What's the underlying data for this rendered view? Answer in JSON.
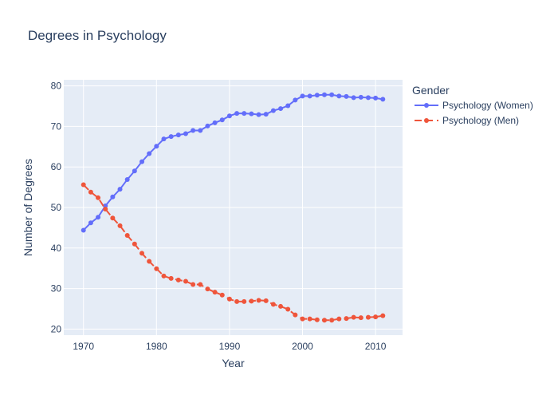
{
  "chart_data": {
    "type": "line",
    "title": "Degrees in Psychology",
    "xlabel": "Year",
    "ylabel": "Number of Degrees",
    "xlim": [
      1967.3,
      2013.7
    ],
    "ylim": [
      18.5,
      81.5
    ],
    "x_ticks": [
      1970,
      1980,
      1990,
      2000,
      2010
    ],
    "y_ticks": [
      20,
      30,
      40,
      50,
      60,
      70,
      80
    ],
    "grid": true,
    "legend": {
      "title": "Gender",
      "position": "right"
    },
    "x": [
      1970,
      1971,
      1972,
      1973,
      1974,
      1975,
      1976,
      1977,
      1978,
      1979,
      1980,
      1981,
      1982,
      1983,
      1984,
      1985,
      1986,
      1987,
      1988,
      1989,
      1990,
      1991,
      1992,
      1993,
      1994,
      1995,
      1996,
      1997,
      1998,
      1999,
      2000,
      2001,
      2002,
      2003,
      2004,
      2005,
      2006,
      2007,
      2008,
      2009,
      2010,
      2011
    ],
    "series": [
      {
        "name": "Psychology (Women)",
        "color": "#636efa",
        "dash": "solid",
        "values": [
          44.4,
          46.2,
          47.6,
          50.4,
          52.6,
          54.5,
          56.9,
          59.0,
          61.3,
          63.3,
          65.1,
          66.9,
          67.5,
          67.9,
          68.2,
          69.0,
          69.0,
          70.1,
          70.9,
          71.6,
          72.6,
          73.2,
          73.2,
          73.1,
          72.9,
          73.0,
          73.9,
          74.4,
          75.1,
          76.5,
          77.5,
          77.5,
          77.7,
          77.8,
          77.8,
          77.5,
          77.4,
          77.1,
          77.2,
          77.1,
          77.0,
          76.7
        ]
      },
      {
        "name": "Psychology (Men)",
        "color": "#ef553b",
        "dash": "dash",
        "values": [
          55.6,
          53.8,
          52.4,
          49.6,
          47.4,
          45.5,
          43.1,
          41.0,
          38.7,
          36.7,
          34.9,
          33.1,
          32.5,
          32.1,
          31.8,
          31.0,
          31.0,
          29.9,
          29.1,
          28.4,
          27.4,
          26.8,
          26.8,
          26.9,
          27.1,
          27.0,
          26.1,
          25.6,
          24.9,
          23.5,
          22.5,
          22.5,
          22.3,
          22.2,
          22.2,
          22.5,
          22.6,
          22.9,
          22.8,
          22.9,
          23.0,
          23.3
        ]
      }
    ]
  }
}
